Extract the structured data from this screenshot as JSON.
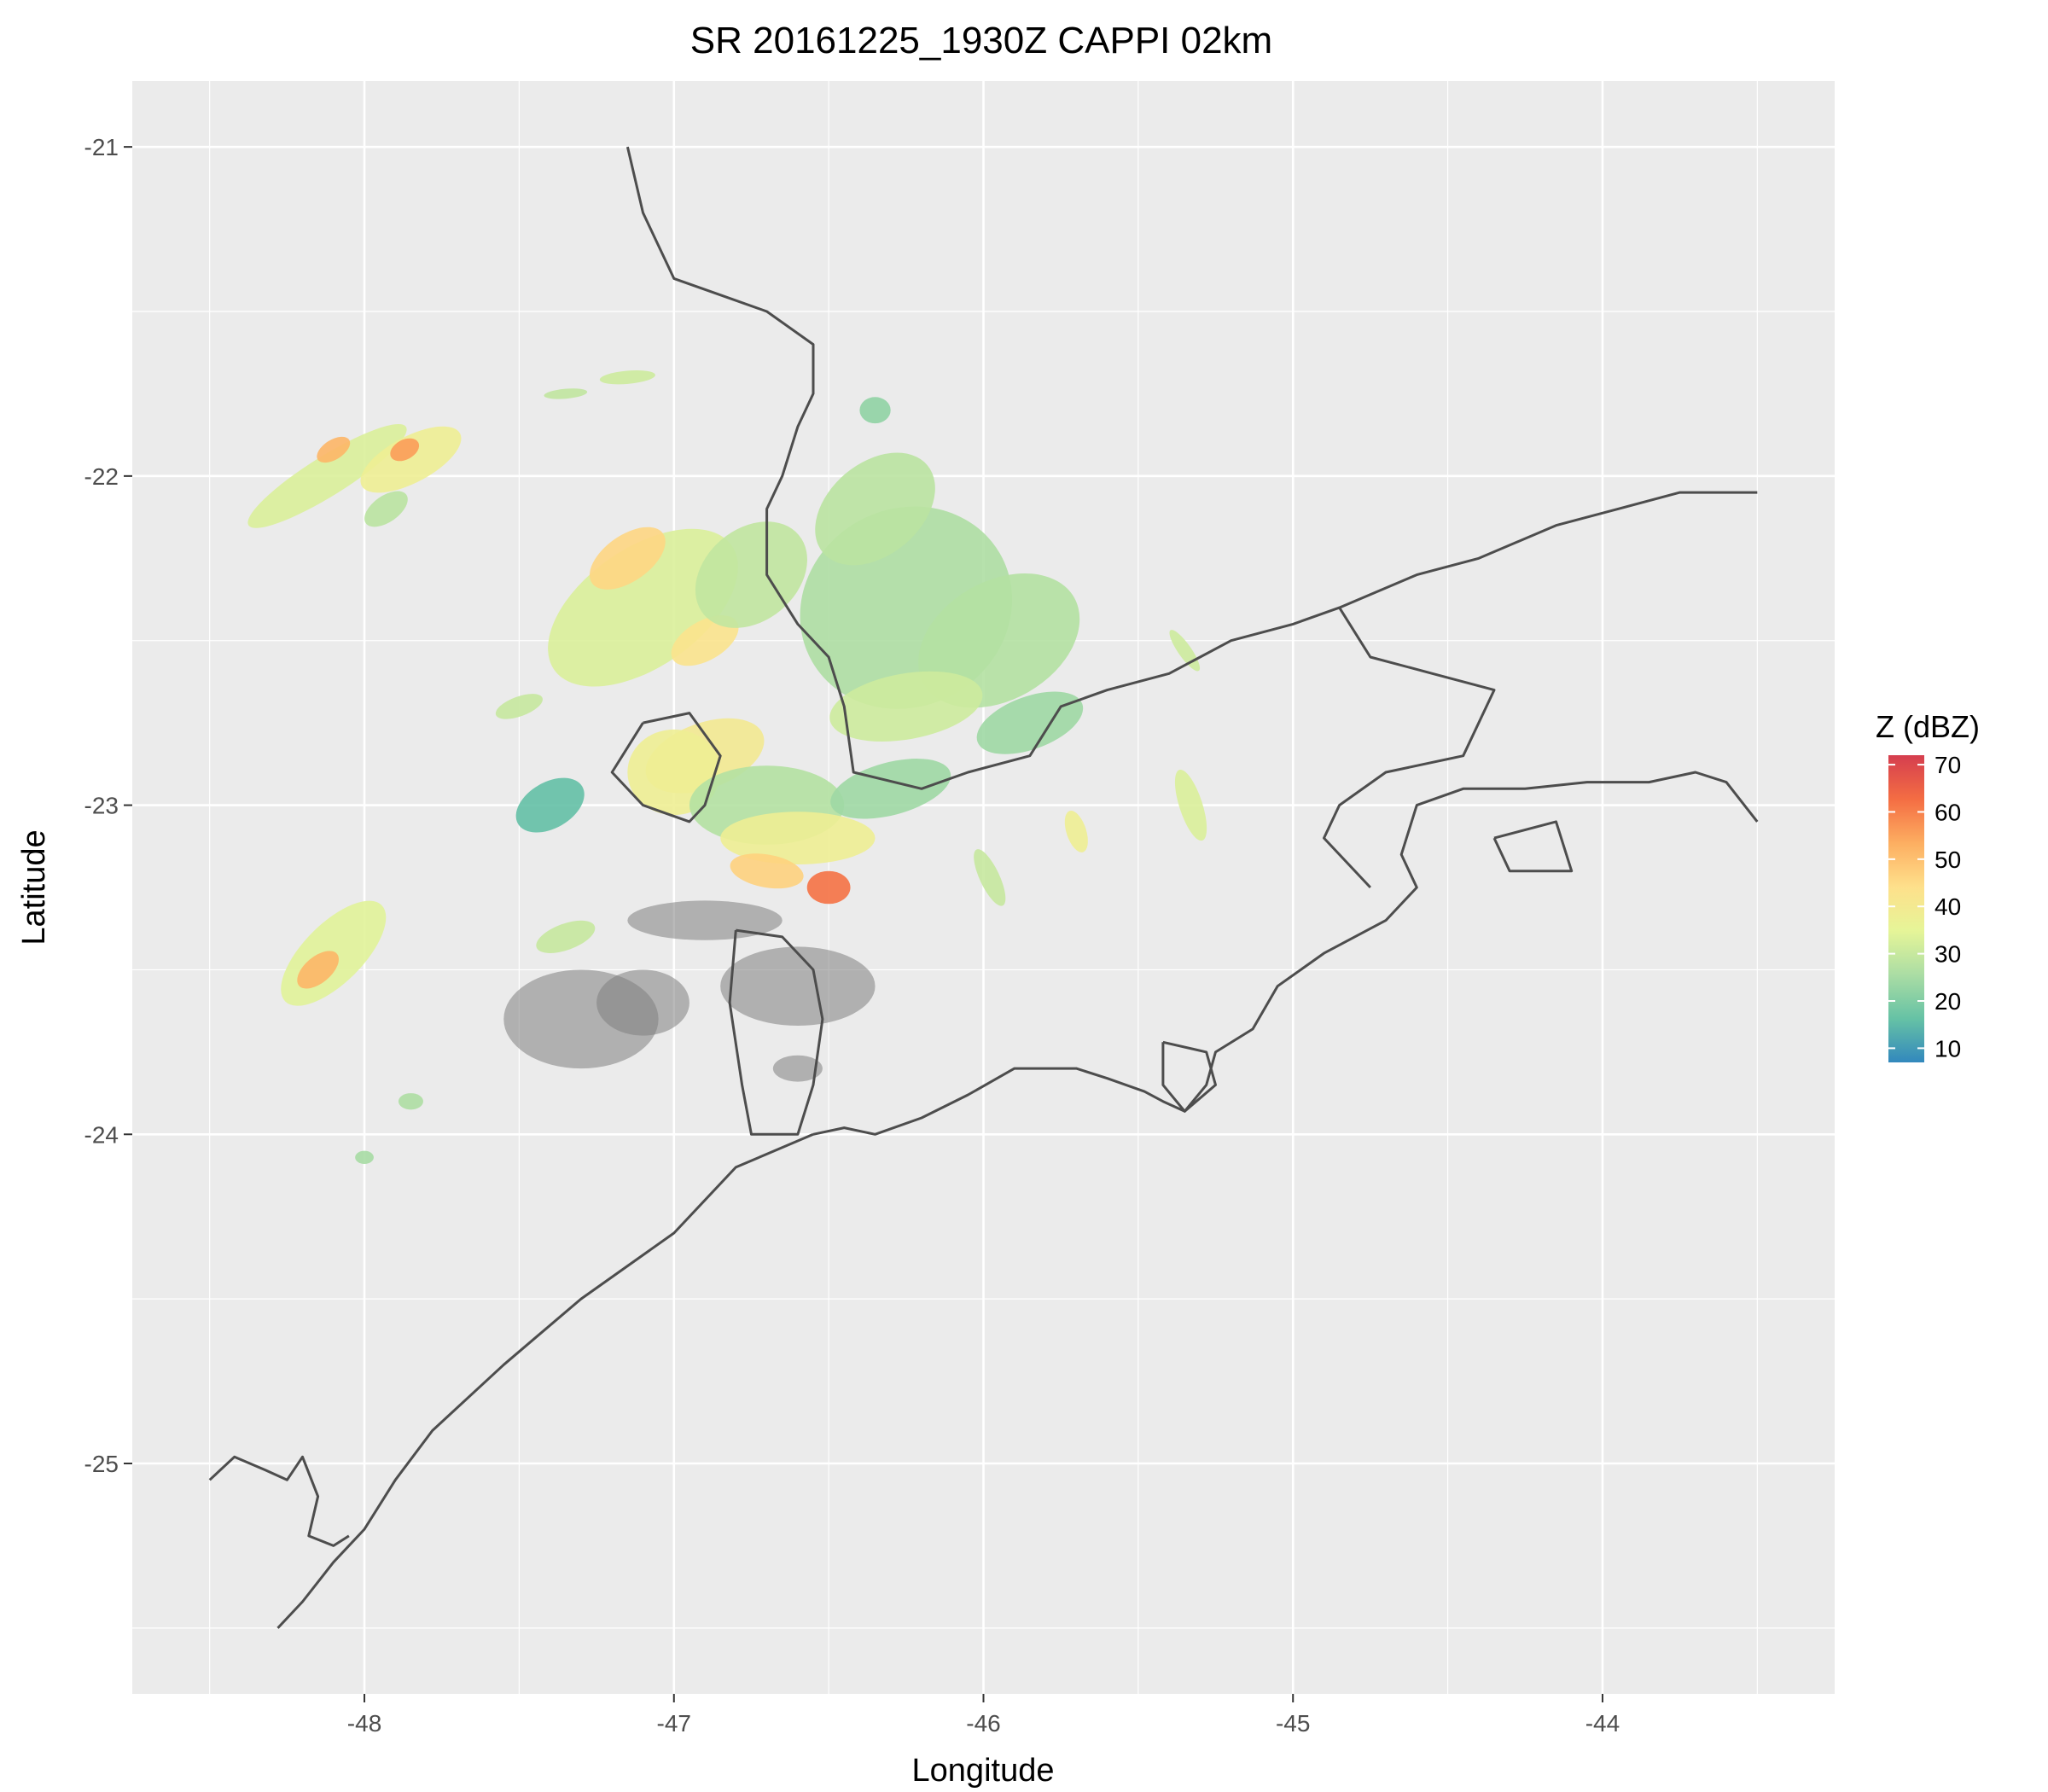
{
  "chart_data": {
    "type": "heatmap",
    "title": "SR 20161225_1930Z  CAPPI 02km",
    "xlabel": "Longitude",
    "ylabel": "Latitude",
    "xlim": [
      -48.75,
      -43.25
    ],
    "ylim": [
      -25.7,
      -20.8
    ],
    "x_ticks": [
      -48,
      -47,
      -46,
      -45,
      -44
    ],
    "y_ticks": [
      -25,
      -24,
      -23,
      -22,
      -21
    ],
    "x_tick_labels": [
      "-48",
      "-47",
      "-46",
      "-45",
      "-44"
    ],
    "y_tick_labels": [
      "-25",
      "-24",
      "-23",
      "-22",
      "-21"
    ],
    "grid": true,
    "panel_background": "#ebebeb",
    "grid_color": "#ffffff",
    "coastline_color": "#4d4d4d",
    "clutter_color": "#7f7f7f",
    "legend": {
      "title": "Z (dBZ)",
      "placement": "right",
      "min": 7,
      "max": 72,
      "ticks": [
        10,
        20,
        30,
        40,
        50,
        60,
        70
      ],
      "tick_labels": [
        "10",
        "20",
        "30",
        "40",
        "50",
        "60",
        "70"
      ],
      "colors": [
        "#3288bd",
        "#66c2a5",
        "#abdda4",
        "#e6f598",
        "#fee08b",
        "#fdae61",
        "#f46d43",
        "#d53e4f"
      ]
    },
    "echoes": [
      {
        "lon": -46.25,
        "lat": -22.4,
        "rlon": 0.35,
        "rlat": 0.3,
        "angle": -30,
        "dbz": 26
      },
      {
        "lon": -45.95,
        "lat": -22.5,
        "rlon": 0.28,
        "rlat": 0.18,
        "angle": -30,
        "dbz": 27
      },
      {
        "lon": -46.35,
        "lat": -22.1,
        "rlon": 0.22,
        "rlat": 0.14,
        "angle": -40,
        "dbz": 28
      },
      {
        "lon": -45.85,
        "lat": -22.75,
        "rlon": 0.18,
        "rlat": 0.08,
        "angle": -20,
        "dbz": 24
      },
      {
        "lon": -46.25,
        "lat": -22.7,
        "rlon": 0.25,
        "rlat": 0.1,
        "angle": -10,
        "dbz": 31
      },
      {
        "lon": -47.1,
        "lat": -22.4,
        "rlon": 0.35,
        "rlat": 0.18,
        "angle": -35,
        "dbz": 33
      },
      {
        "lon": -47.15,
        "lat": -22.25,
        "rlon": 0.14,
        "rlat": 0.07,
        "angle": -35,
        "dbz": 46
      },
      {
        "lon": -46.9,
        "lat": -22.5,
        "rlon": 0.12,
        "rlat": 0.06,
        "angle": -30,
        "dbz": 43
      },
      {
        "lon": -46.75,
        "lat": -22.3,
        "rlon": 0.2,
        "rlat": 0.14,
        "angle": -40,
        "dbz": 29
      },
      {
        "lon": -46.9,
        "lat": -22.85,
        "rlon": 0.2,
        "rlat": 0.1,
        "angle": -20,
        "dbz": 40
      },
      {
        "lon": -47.0,
        "lat": -22.9,
        "rlon": 0.15,
        "rlat": 0.13,
        "angle": 0,
        "dbz": 38
      },
      {
        "lon": -46.7,
        "lat": -23.0,
        "rlon": 0.25,
        "rlat": 0.12,
        "angle": 0,
        "dbz": 27
      },
      {
        "lon": -46.6,
        "lat": -23.1,
        "rlon": 0.25,
        "rlat": 0.08,
        "angle": 0,
        "dbz": 38
      },
      {
        "lon": -46.5,
        "lat": -23.25,
        "rlon": 0.07,
        "rlat": 0.05,
        "angle": 0,
        "dbz": 62
      },
      {
        "lon": -46.7,
        "lat": -23.2,
        "rlon": 0.12,
        "rlat": 0.05,
        "angle": 10,
        "dbz": 47
      },
      {
        "lon": -46.3,
        "lat": -22.95,
        "rlon": 0.2,
        "rlat": 0.08,
        "angle": -15,
        "dbz": 24
      },
      {
        "lon": -47.4,
        "lat": -23.0,
        "rlon": 0.12,
        "rlat": 0.07,
        "angle": -30,
        "dbz": 16
      },
      {
        "lon": -47.5,
        "lat": -22.7,
        "rlon": 0.08,
        "rlat": 0.03,
        "angle": -20,
        "dbz": 30
      },
      {
        "lon": -48.12,
        "lat": -22.0,
        "rlon": 0.3,
        "rlat": 0.06,
        "angle": -32,
        "dbz": 33
      },
      {
        "lon": -48.1,
        "lat": -21.92,
        "rlon": 0.06,
        "rlat": 0.03,
        "angle": -32,
        "dbz": 52
      },
      {
        "lon": -47.85,
        "lat": -21.95,
        "rlon": 0.18,
        "rlat": 0.07,
        "angle": -28,
        "dbz": 38
      },
      {
        "lon": -47.87,
        "lat": -21.92,
        "rlon": 0.05,
        "rlat": 0.03,
        "angle": -28,
        "dbz": 56
      },
      {
        "lon": -47.93,
        "lat": -22.1,
        "rlon": 0.08,
        "rlat": 0.04,
        "angle": -35,
        "dbz": 28
      },
      {
        "lon": -48.1,
        "lat": -23.45,
        "rlon": 0.22,
        "rlat": 0.09,
        "angle": -45,
        "dbz": 34
      },
      {
        "lon": -48.15,
        "lat": -23.5,
        "rlon": 0.08,
        "rlat": 0.04,
        "angle": -40,
        "dbz": 52
      },
      {
        "lon": -47.35,
        "lat": -23.4,
        "rlon": 0.1,
        "rlat": 0.04,
        "angle": -20,
        "dbz": 30
      },
      {
        "lon": -47.15,
        "lat": -21.7,
        "rlon": 0.09,
        "rlat": 0.02,
        "angle": -5,
        "dbz": 31
      },
      {
        "lon": -47.35,
        "lat": -21.75,
        "rlon": 0.07,
        "rlat": 0.015,
        "angle": -5,
        "dbz": 29
      },
      {
        "lon": -46.35,
        "lat": -21.8,
        "rlon": 0.05,
        "rlat": 0.04,
        "angle": 0,
        "dbz": 22
      },
      {
        "lon": -45.33,
        "lat": -23.0,
        "rlon": 0.12,
        "rlat": 0.035,
        "angle": 72,
        "dbz": 33
      },
      {
        "lon": -45.7,
        "lat": -23.08,
        "rlon": 0.07,
        "rlat": 0.03,
        "angle": 72,
        "dbz": 38
      },
      {
        "lon": -45.98,
        "lat": -23.22,
        "rlon": 0.1,
        "rlat": 0.03,
        "angle": 65,
        "dbz": 30
      },
      {
        "lon": -45.35,
        "lat": -22.53,
        "rlon": 0.08,
        "rlat": 0.02,
        "angle": 55,
        "dbz": 31
      },
      {
        "lon": -47.85,
        "lat": -23.9,
        "rlon": 0.04,
        "rlat": 0.025,
        "angle": 0,
        "dbz": 26
      },
      {
        "lon": -48.0,
        "lat": -24.07,
        "rlon": 0.03,
        "rlat": 0.02,
        "angle": 0,
        "dbz": 25
      }
    ],
    "clutter": [
      {
        "lon": -46.9,
        "lat": -23.35,
        "rlon": 0.25,
        "rlat": 0.06
      },
      {
        "lon": -46.6,
        "lat": -23.55,
        "rlon": 0.25,
        "rlat": 0.12
      },
      {
        "lon": -47.3,
        "lat": -23.65,
        "rlon": 0.25,
        "rlat": 0.15
      },
      {
        "lon": -47.1,
        "lat": -23.6,
        "rlon": 0.15,
        "rlat": 0.1
      },
      {
        "lon": -46.6,
        "lat": -23.8,
        "rlon": 0.08,
        "rlat": 0.04
      }
    ],
    "coastlines": [
      {
        "name": "coastline-ne",
        "points": [
          [
            -46.55,
            -24.0
          ],
          [
            -46.45,
            -23.98
          ],
          [
            -46.35,
            -24.0
          ],
          [
            -46.2,
            -23.95
          ],
          [
            -46.05,
            -23.88
          ],
          [
            -45.9,
            -23.8
          ],
          [
            -45.7,
            -23.8
          ],
          [
            -45.6,
            -23.83
          ],
          [
            -45.48,
            -23.87
          ],
          [
            -45.42,
            -23.9
          ],
          [
            -45.35,
            -23.93
          ],
          [
            -45.28,
            -23.85
          ],
          [
            -45.25,
            -23.75
          ],
          [
            -45.13,
            -23.68
          ],
          [
            -45.05,
            -23.55
          ],
          [
            -44.9,
            -23.45
          ],
          [
            -44.7,
            -23.35
          ],
          [
            -44.6,
            -23.25
          ],
          [
            -44.65,
            -23.15
          ],
          [
            -44.6,
            -23.0
          ],
          [
            -44.45,
            -22.95
          ],
          [
            -44.25,
            -22.95
          ],
          [
            -44.05,
            -22.93
          ],
          [
            -43.85,
            -22.93
          ],
          [
            -43.7,
            -22.9
          ],
          [
            -43.6,
            -22.93
          ],
          [
            -43.5,
            -23.05
          ]
        ]
      },
      {
        "name": "coastline-sw",
        "points": [
          [
            -46.55,
            -24.0
          ],
          [
            -46.8,
            -24.1
          ],
          [
            -47.0,
            -24.3
          ],
          [
            -47.3,
            -24.5
          ],
          [
            -47.55,
            -24.7
          ],
          [
            -47.78,
            -24.9
          ],
          [
            -47.9,
            -25.05
          ],
          [
            -48.0,
            -25.2
          ],
          [
            -48.1,
            -25.3
          ],
          [
            -48.2,
            -25.42
          ],
          [
            -48.28,
            -25.5
          ]
        ]
      },
      {
        "name": "coastline-far-sw",
        "points": [
          [
            -48.5,
            -25.05
          ],
          [
            -48.42,
            -24.98
          ],
          [
            -48.32,
            -25.02
          ],
          [
            -48.25,
            -25.05
          ],
          [
            -48.2,
            -24.98
          ],
          [
            -48.15,
            -25.1
          ],
          [
            -48.18,
            -25.22
          ],
          [
            -48.1,
            -25.25
          ],
          [
            -48.05,
            -25.22
          ]
        ]
      },
      {
        "name": "island-sao-sebastiao",
        "points": [
          [
            -45.42,
            -23.72
          ],
          [
            -45.28,
            -23.75
          ],
          [
            -45.25,
            -23.85
          ],
          [
            -45.35,
            -23.93
          ],
          [
            -45.42,
            -23.85
          ],
          [
            -45.42,
            -23.72
          ]
        ]
      },
      {
        "name": "island-ilha-grande",
        "points": [
          [
            -44.35,
            -23.1
          ],
          [
            -44.15,
            -23.05
          ],
          [
            -44.1,
            -23.2
          ],
          [
            -44.3,
            -23.2
          ],
          [
            -44.35,
            -23.1
          ]
        ]
      },
      {
        "name": "state-border-north",
        "points": [
          [
            -47.15,
            -21.0
          ],
          [
            -47.1,
            -21.2
          ],
          [
            -47.0,
            -21.4
          ],
          [
            -46.85,
            -21.45
          ],
          [
            -46.7,
            -21.5
          ],
          [
            -46.55,
            -21.6
          ],
          [
            -46.55,
            -21.75
          ],
          [
            -46.6,
            -21.85
          ],
          [
            -46.65,
            -22.0
          ],
          [
            -46.7,
            -22.1
          ],
          [
            -46.7,
            -22.3
          ],
          [
            -46.6,
            -22.45
          ],
          [
            -46.5,
            -22.55
          ],
          [
            -46.45,
            -22.7
          ],
          [
            -46.42,
            -22.9
          ],
          [
            -46.2,
            -22.95
          ],
          [
            -46.05,
            -22.9
          ],
          [
            -45.85,
            -22.85
          ],
          [
            -45.75,
            -22.7
          ],
          [
            -45.6,
            -22.65
          ],
          [
            -45.4,
            -22.6
          ],
          [
            -45.2,
            -22.5
          ],
          [
            -45.0,
            -22.45
          ],
          [
            -44.85,
            -22.4
          ],
          [
            -44.6,
            -22.3
          ],
          [
            -44.4,
            -22.25
          ],
          [
            -44.15,
            -22.15
          ],
          [
            -43.95,
            -22.1
          ],
          [
            -43.75,
            -22.05
          ],
          [
            -43.5,
            -22.05
          ]
        ]
      },
      {
        "name": "state-border-east",
        "points": [
          [
            -44.85,
            -22.4
          ],
          [
            -44.75,
            -22.55
          ],
          [
            -44.55,
            -22.6
          ],
          [
            -44.35,
            -22.65
          ],
          [
            -44.45,
            -22.85
          ],
          [
            -44.7,
            -22.9
          ],
          [
            -44.85,
            -23.0
          ],
          [
            -44.9,
            -23.1
          ],
          [
            -44.75,
            -23.25
          ]
        ]
      },
      {
        "name": "city-outline",
        "points": [
          [
            -47.1,
            -22.75
          ],
          [
            -46.95,
            -22.72
          ],
          [
            -46.85,
            -22.85
          ],
          [
            -46.9,
            -23.0
          ],
          [
            -46.95,
            -23.05
          ],
          [
            -47.1,
            -23.0
          ],
          [
            -47.2,
            -22.9
          ],
          [
            -47.1,
            -22.75
          ]
        ]
      },
      {
        "name": "metro-outline",
        "points": [
          [
            -46.8,
            -23.38
          ],
          [
            -46.65,
            -23.4
          ],
          [
            -46.55,
            -23.5
          ],
          [
            -46.52,
            -23.65
          ],
          [
            -46.55,
            -23.85
          ],
          [
            -46.6,
            -24.0
          ],
          [
            -46.75,
            -24.0
          ],
          [
            -46.78,
            -23.85
          ],
          [
            -46.82,
            -23.6
          ],
          [
            -46.8,
            -23.38
          ]
        ]
      }
    ]
  }
}
